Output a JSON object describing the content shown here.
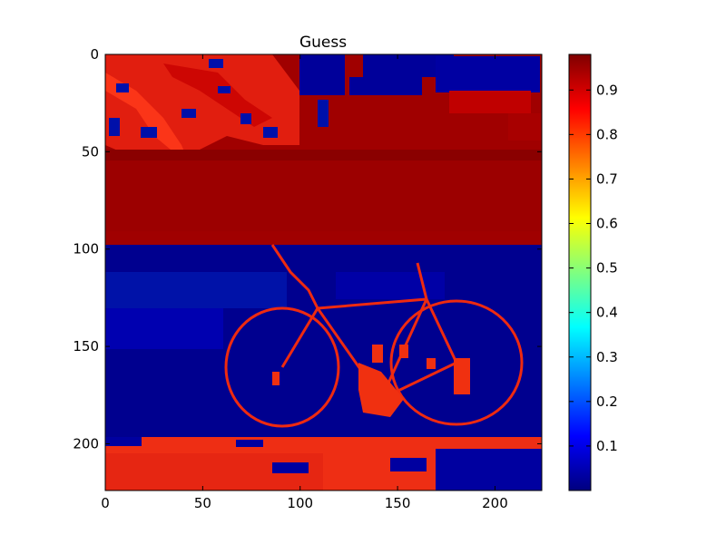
{
  "chart_data": {
    "type": "heatmap",
    "title": "Guess",
    "xlabel": "",
    "ylabel": "",
    "x_range": [
      0,
      224
    ],
    "y_range": [
      0,
      224
    ],
    "y_inverted": true,
    "x_ticks": [
      "0",
      "50",
      "100",
      "150",
      "200"
    ],
    "y_ticks": [
      "0",
      "50",
      "100",
      "150",
      "200"
    ],
    "colormap": "jet",
    "colorbar": {
      "range": [
        0.0,
        0.98
      ],
      "ticks": [
        "0.1",
        "0.2",
        "0.3",
        "0.4",
        "0.5",
        "0.6",
        "0.7",
        "0.8",
        "0.9"
      ]
    },
    "regions": [
      {
        "label": "upper-left foliage",
        "rows": [
          0,
          50
        ],
        "cols": [
          0,
          100
        ],
        "value": 0.85
      },
      {
        "label": "top band right",
        "rows": [
          0,
          48
        ],
        "cols": [
          100,
          224
        ],
        "value": 0.95
      },
      {
        "label": "middle band",
        "rows": [
          48,
          98
        ],
        "cols": [
          0,
          224
        ],
        "value": 0.97
      },
      {
        "label": "lower background",
        "rows": [
          98,
          196
        ],
        "cols": [
          0,
          224
        ],
        "value": 0.02
      },
      {
        "label": "bicycle outline",
        "rows": [
          98,
          196
        ],
        "cols": [
          60,
          215
        ],
        "value": 0.85
      },
      {
        "label": "bottom ground",
        "rows": [
          196,
          224
        ],
        "cols": [
          0,
          224
        ],
        "value": 0.85
      }
    ],
    "grid": false,
    "legend": "none"
  }
}
